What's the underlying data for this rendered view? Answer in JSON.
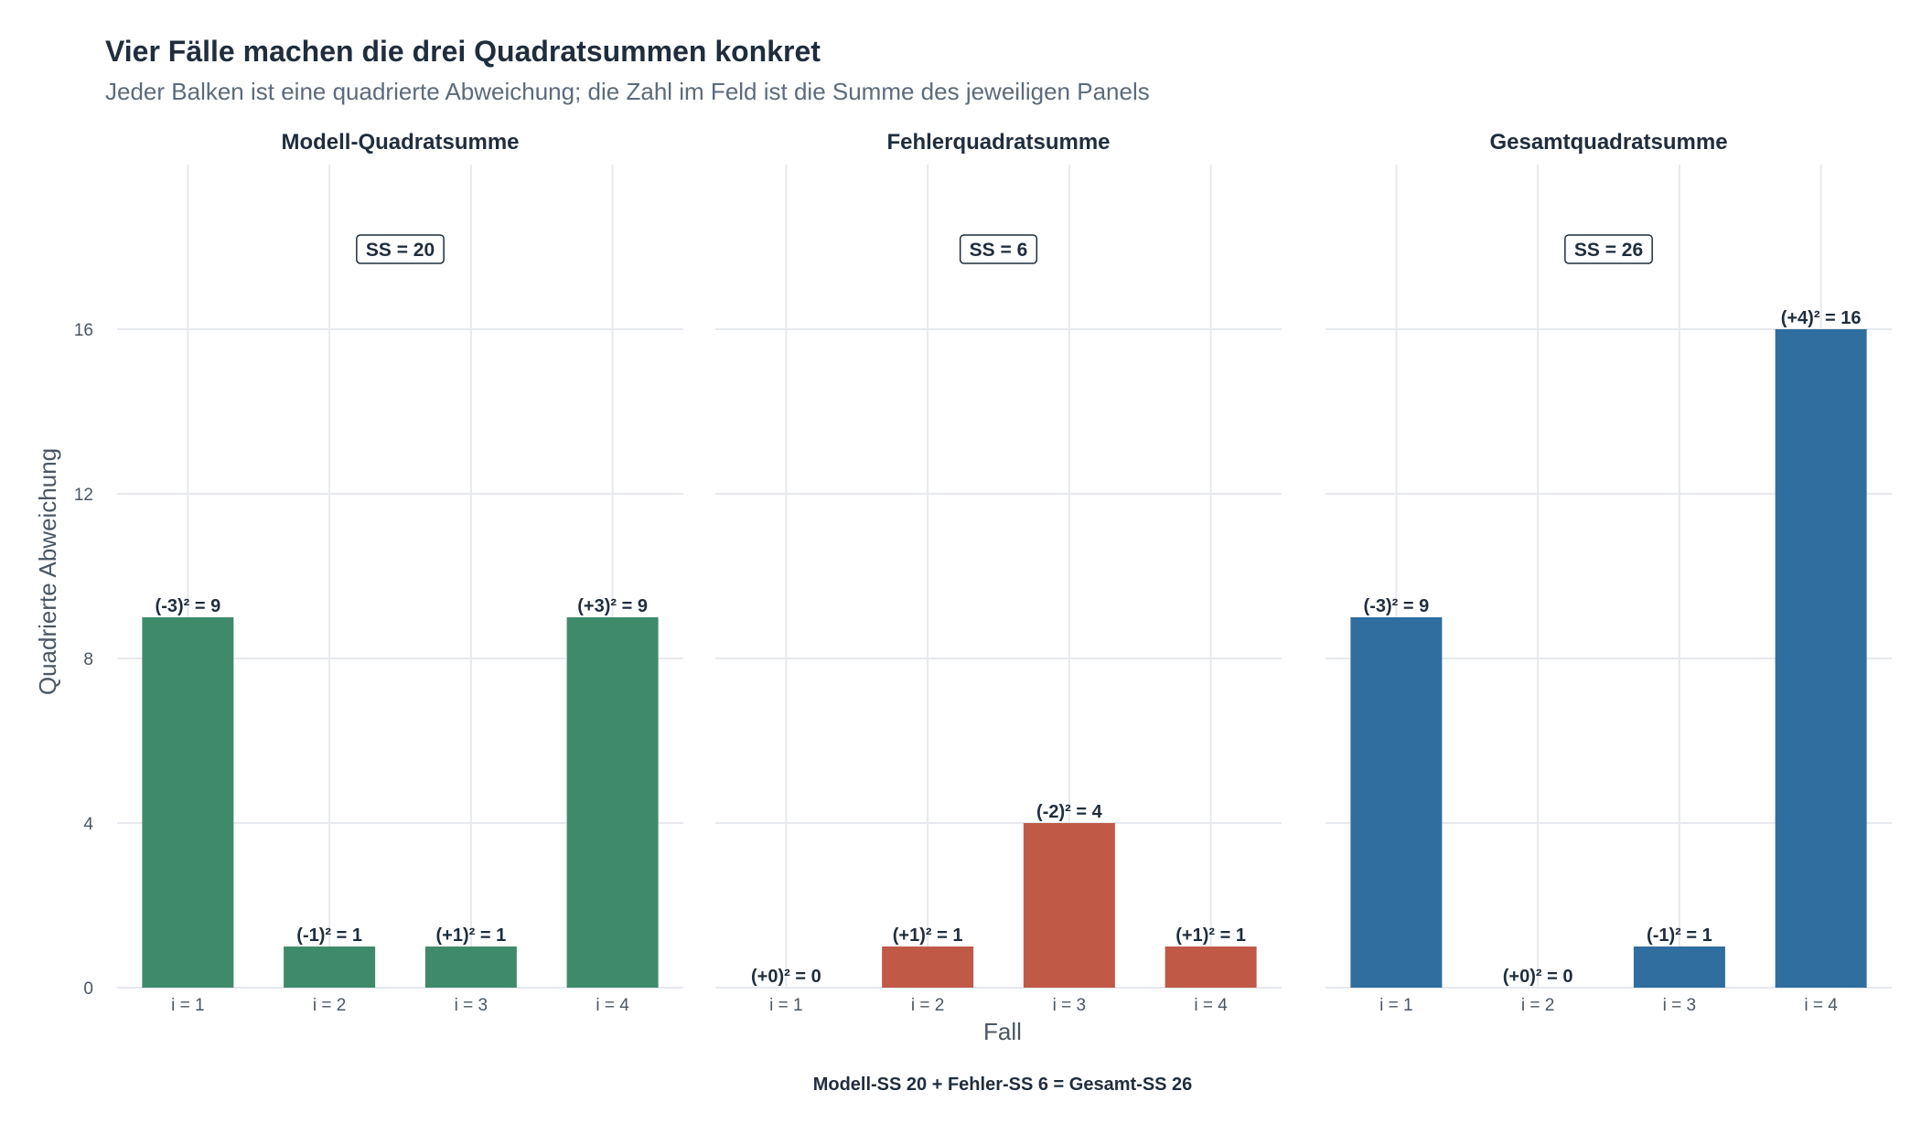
{
  "chart_data": {
    "type": "bar",
    "title": "Vier Fälle machen die drei Quadratsummen konkret",
    "subtitle": "Jeder Balken ist eine quadrierte Abweichung; die Zahl im Feld ist die Summe des jeweiligen Panels",
    "xlabel": "Fall",
    "ylabel": "Quadrierte Abweichung",
    "caption": "Modell-SS 20 + Fehler-SS 6 = Gesamt-SS 26",
    "ylim": [
      0,
      20
    ],
    "yticks": [
      "0",
      "4",
      "8",
      "12",
      "16"
    ],
    "ytick_values": [
      0,
      4,
      8,
      12,
      16
    ],
    "grid": true,
    "categories": [
      "i = 1",
      "i = 2",
      "i = 3",
      "i = 4"
    ],
    "panels": [
      {
        "name": "Modell-Quadratsumme",
        "color": "#408a6c",
        "values": [
          9,
          1,
          1,
          9
        ],
        "labels": [
          "(-3)² = 9",
          "(-1)² = 1",
          "(+1)² = 1",
          "(+3)² = 9"
        ],
        "ss_label": "SS = 20"
      },
      {
        "name": "Fehlerquadratsumme",
        "color": "#c05a47",
        "values": [
          0,
          1,
          4,
          1
        ],
        "labels": [
          "(+0)² = 0",
          "(+1)² = 1",
          "(-2)² = 4",
          "(+1)² = 1"
        ],
        "ss_label": "SS = 6"
      },
      {
        "name": "Gesamtquadratsumme",
        "color": "#2f6e9f",
        "values": [
          9,
          0,
          1,
          16
        ],
        "labels": [
          "(-3)² = 9",
          "(+0)² = 0",
          "(-1)² = 1",
          "(+4)² = 16"
        ],
        "ss_label": "SS = 26"
      }
    ]
  }
}
